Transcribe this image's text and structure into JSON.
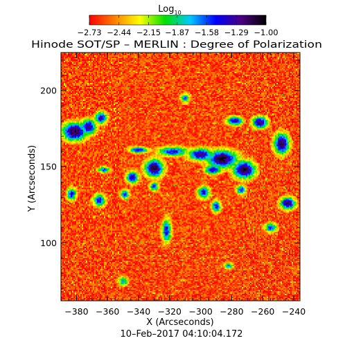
{
  "chart_data": {
    "type": "heatmap",
    "title": "Hinode SOT/SP – MERLIN : Degree of Polarization",
    "xlabel": "X (Arcseconds)",
    "ylabel": "Y (Arcseconds)",
    "date_label": "10–Feb–2017 04:10:04.172",
    "colorbar": {
      "label_base": "Log",
      "label_sub": "10",
      "min": -2.73,
      "max": -1.0,
      "tick_values": [
        -2.73,
        -2.44,
        -2.15,
        -1.87,
        -1.58,
        -1.29,
        -1.0
      ],
      "tick_labels": [
        "−2.73",
        "−2.44",
        "−2.15",
        "−1.87",
        "−1.58",
        "−1.29",
        "−1.00"
      ],
      "colormap": [
        "#ff0000",
        "#ff8000",
        "#ffff00",
        "#00e000",
        "#00c8ff",
        "#0000ff",
        "#4b0082",
        "#000000"
      ]
    },
    "xlim": [
      -390,
      -236
    ],
    "ylim": [
      62,
      225
    ],
    "x_ticks": [
      -380,
      -360,
      -340,
      -320,
      -300,
      -280,
      -260,
      -240
    ],
    "x_tick_labels": [
      "−380",
      "−360",
      "−340",
      "−320",
      "−300",
      "−280",
      "−260",
      "−240"
    ],
    "y_ticks": [
      100,
      150,
      200
    ],
    "y_tick_labels": [
      "100",
      "150",
      "200"
    ],
    "background_level": -2.6,
    "strong_regions": [
      {
        "x": -381,
        "y": 173,
        "rx": 8,
        "ry": 6,
        "level": -1.05
      },
      {
        "x": -372,
        "y": 176,
        "rx": 5,
        "ry": 5,
        "level": -1.2
      },
      {
        "x": -364,
        "y": 182,
        "rx": 4,
        "ry": 4,
        "level": -1.3
      },
      {
        "x": -383,
        "y": 132,
        "rx": 3,
        "ry": 4,
        "level": -1.4
      },
      {
        "x": -365,
        "y": 128,
        "rx": 4,
        "ry": 4,
        "level": -1.4
      },
      {
        "x": -340,
        "y": 161,
        "rx": 6,
        "ry": 2,
        "level": -1.35
      },
      {
        "x": -330,
        "y": 149,
        "rx": 6,
        "ry": 6,
        "level": -1.05
      },
      {
        "x": -344,
        "y": 143,
        "rx": 4,
        "ry": 4,
        "level": -1.3
      },
      {
        "x": -349,
        "y": 132,
        "rx": 3,
        "ry": 3,
        "level": -1.5
      },
      {
        "x": -330,
        "y": 137,
        "rx": 3,
        "ry": 3,
        "level": -1.5
      },
      {
        "x": -322,
        "y": 108,
        "rx": 3,
        "ry": 8,
        "level": -1.45
      },
      {
        "x": -318,
        "y": 160,
        "rx": 10,
        "ry": 3,
        "level": -1.4
      },
      {
        "x": -300,
        "y": 158,
        "rx": 8,
        "ry": 4,
        "level": -1.2
      },
      {
        "x": -286,
        "y": 155,
        "rx": 10,
        "ry": 6,
        "level": -1.05
      },
      {
        "x": -272,
        "y": 148,
        "rx": 7,
        "ry": 6,
        "level": -1.05
      },
      {
        "x": -292,
        "y": 148,
        "rx": 5,
        "ry": 3,
        "level": -1.3
      },
      {
        "x": -298,
        "y": 133,
        "rx": 4,
        "ry": 4,
        "level": -1.4
      },
      {
        "x": -290,
        "y": 124,
        "rx": 3,
        "ry": 4,
        "level": -1.45
      },
      {
        "x": -274,
        "y": 135,
        "rx": 3,
        "ry": 3,
        "level": -1.5
      },
      {
        "x": -278,
        "y": 180,
        "rx": 5,
        "ry": 3,
        "level": -1.3
      },
      {
        "x": -262,
        "y": 179,
        "rx": 5,
        "ry": 4,
        "level": -1.2
      },
      {
        "x": -248,
        "y": 165,
        "rx": 5,
        "ry": 7,
        "level": -1.1
      },
      {
        "x": -244,
        "y": 126,
        "rx": 5,
        "ry": 4,
        "level": -1.15
      },
      {
        "x": -255,
        "y": 110,
        "rx": 4,
        "ry": 3,
        "level": -1.5
      },
      {
        "x": -362,
        "y": 148,
        "rx": 4,
        "ry": 2,
        "level": -1.55
      },
      {
        "x": -310,
        "y": 195,
        "rx": 3,
        "ry": 3,
        "level": -1.6
      },
      {
        "x": -350,
        "y": 75,
        "rx": 3,
        "ry": 3,
        "level": -1.7
      },
      {
        "x": -282,
        "y": 85,
        "rx": 3,
        "ry": 2,
        "level": -1.7
      }
    ]
  }
}
